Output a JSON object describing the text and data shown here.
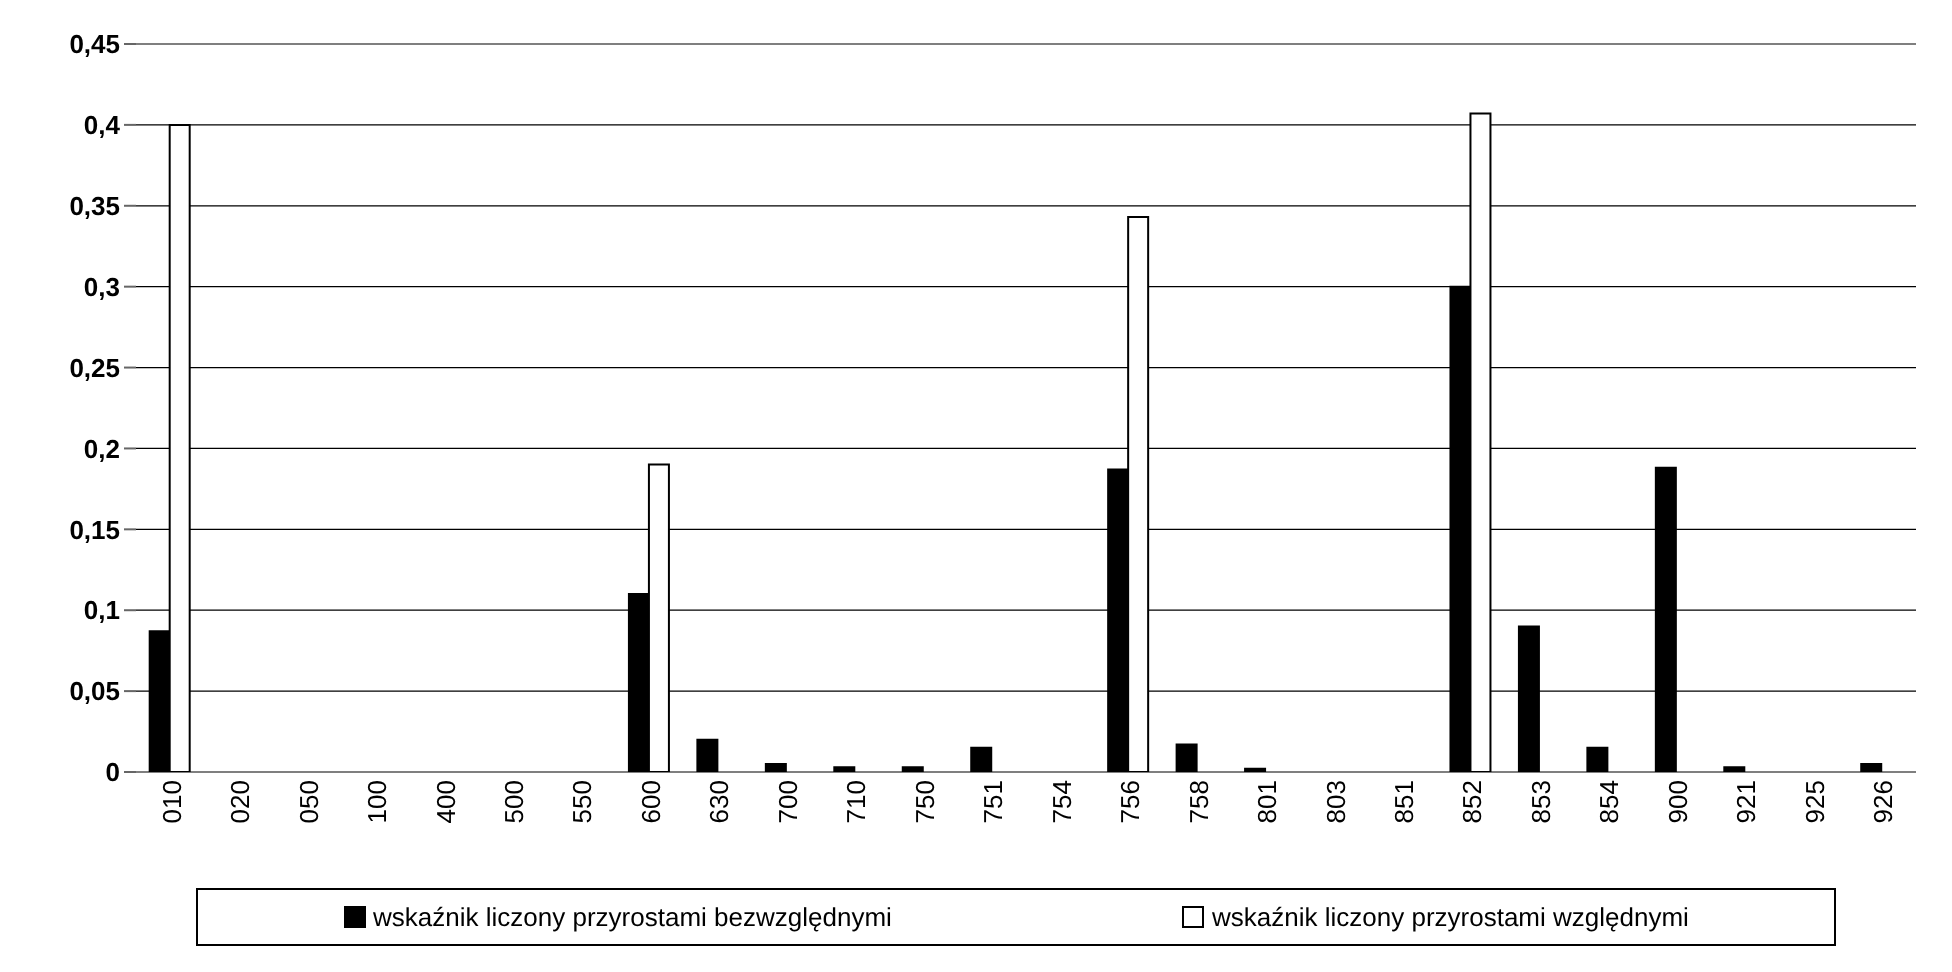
{
  "chart_data": {
    "type": "bar",
    "categories": [
      "010",
      "020",
      "050",
      "100",
      "400",
      "500",
      "550",
      "600",
      "630",
      "700",
      "710",
      "750",
      "751",
      "754",
      "756",
      "758",
      "801",
      "803",
      "851",
      "852",
      "853",
      "854",
      "900",
      "921",
      "925",
      "926"
    ],
    "series": [
      {
        "name": "wskaźnik liczony przyrostami bezwzględnymi",
        "color": "#000000",
        "values": [
          0.087,
          0,
          0,
          0,
          0,
          0,
          0,
          0.11,
          0.02,
          0.005,
          0.003,
          0.003,
          0.015,
          0,
          0.187,
          0.017,
          0.002,
          0,
          0,
          0.3,
          0.09,
          0.015,
          0.188,
          0.003,
          0,
          0.005
        ]
      },
      {
        "name": "wskaźnik liczony przyrostami względnymi",
        "color": "#ffffff",
        "values": [
          0.4,
          null,
          null,
          null,
          null,
          null,
          null,
          0.19,
          null,
          null,
          null,
          null,
          null,
          null,
          0.343,
          null,
          null,
          null,
          null,
          0.407,
          null,
          null,
          null,
          null,
          null,
          null
        ]
      }
    ],
    "ylim": [
      0,
      0.45
    ],
    "yticks": [
      0,
      {
        "value": 0.05,
        "label": "0,05"
      },
      {
        "value": 0.1,
        "label": "0,1"
      },
      {
        "value": 0.15,
        "label": "0,15"
      },
      {
        "value": 0.2,
        "label": "0,2"
      },
      {
        "value": 0.25,
        "label": "0,25"
      },
      {
        "value": 0.3,
        "label": "0,3"
      },
      {
        "value": 0.35,
        "label": "0,35"
      },
      {
        "value": 0.4,
        "label": "0,4"
      },
      {
        "value": 0.45,
        "label": "0,45"
      }
    ],
    "grid": "y",
    "legend": "bottom"
  }
}
